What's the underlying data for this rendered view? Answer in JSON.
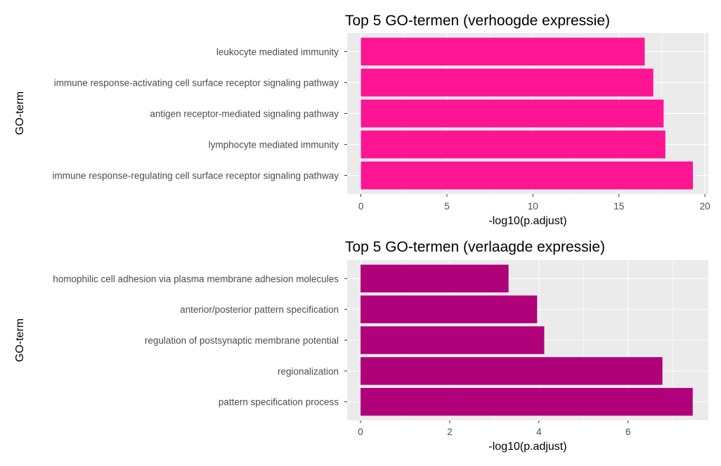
{
  "chart_data": [
    {
      "type": "bar",
      "orientation": "horizontal",
      "title": "Top 5 GO-termen (verhoogde expressie)",
      "xlabel": "-log10(p.adjust)",
      "ylabel": "GO-term",
      "categories": [
        "leukocyte mediated immunity",
        "immune response-activating cell surface receptor signaling pathway",
        "antigen receptor-mediated signaling pathway",
        "lymphocyte mediated immunity",
        "immune response-regulating cell surface receptor signaling pathway"
      ],
      "values": [
        16.5,
        17.0,
        17.6,
        17.7,
        19.3
      ],
      "xlim": [
        -0.8,
        20.2
      ],
      "xticks": [
        0,
        5,
        10,
        15,
        20
      ],
      "xtick_labels": [
        "0",
        "5",
        "10",
        "15",
        "20"
      ],
      "bar_color": "#ff1493",
      "grid": true,
      "legend": "none"
    },
    {
      "type": "bar",
      "orientation": "horizontal",
      "title": "Top 5 GO-termen (verlaagde expressie)",
      "xlabel": "-log10(p.adjust)",
      "ylabel": "GO-term",
      "categories": [
        "homophilic cell adhesion via plasma membrane adhesion molecules",
        "anterior/posterior pattern specification",
        "regulation of postsynaptic membrane potential",
        "regionalization",
        "pattern specification process"
      ],
      "values": [
        3.32,
        3.96,
        4.12,
        6.77,
        7.45
      ],
      "xlim": [
        -0.3,
        7.8
      ],
      "xticks": [
        0,
        2,
        4,
        6
      ],
      "xtick_labels": [
        "0",
        "2",
        "4",
        "6"
      ],
      "bar_color": "#b0007a",
      "grid": true,
      "legend": "none"
    }
  ]
}
